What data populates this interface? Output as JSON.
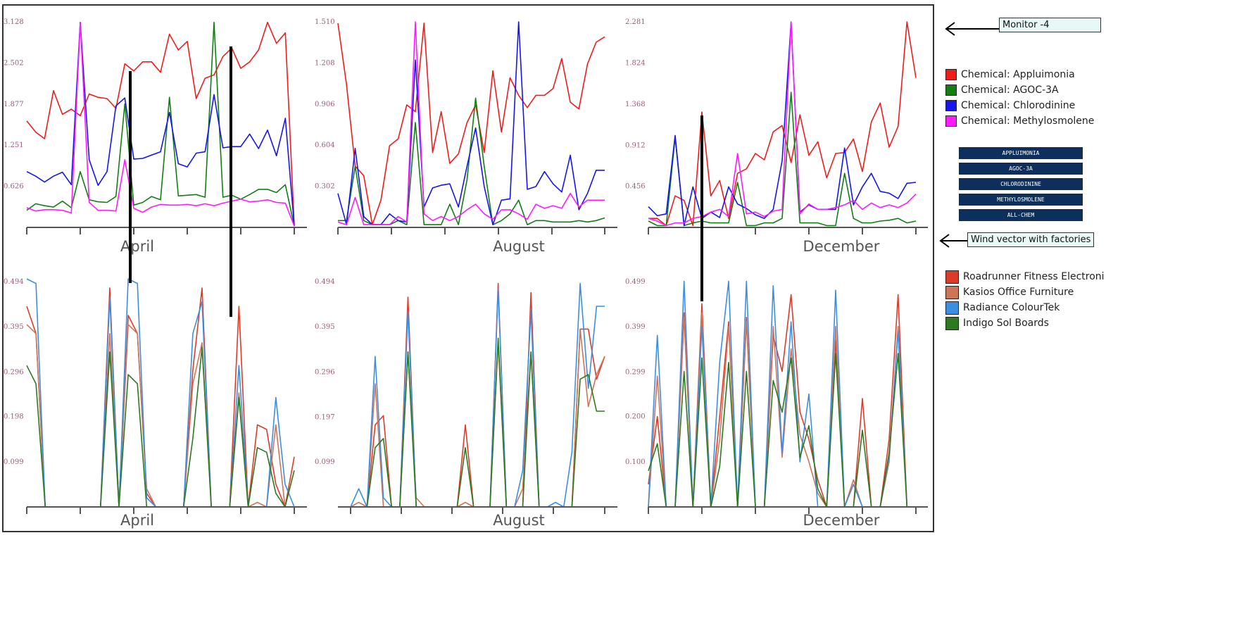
{
  "annotations": {
    "monitor_label": "Monitor -4",
    "wind_label": "Wind vector with factories"
  },
  "chemical_legend": [
    {
      "label": "Chemical: Appluimonia",
      "color": "#f01c1c"
    },
    {
      "label": "Chemical: AGOC-3A",
      "color": "#137e13"
    },
    {
      "label": "Chemical: Chlorodinine",
      "color": "#1515ee"
    },
    {
      "label": "Chemical: Methylosmolene",
      "color": "#ff1aff"
    }
  ],
  "factory_legend": [
    {
      "label": "Roadrunner Fitness Electroni",
      "color": "#dd3b2a"
    },
    {
      "label": "Kasios Office Furniture",
      "color": "#cf7557"
    },
    {
      "label": "Radiance ColourTek",
      "color": "#3c8fe0"
    },
    {
      "label": "Indigo Sol Boards",
      "color": "#2c7a1f"
    }
  ],
  "buttons": {
    "appluimonia": "APPLUIMONIA",
    "agoc": "AGOC-3A",
    "chlorodinine": "CHLORODININE",
    "methylosmolene": "METHYLOSMOLENE",
    "all": "ALL-CHEM"
  },
  "chart_data": [
    {
      "type": "line",
      "title": "",
      "xlabel": "April",
      "ylabel": "",
      "yticks": [
        "0.626",
        "1.251",
        "1.877",
        "2.502",
        "3.128"
      ],
      "ylim": [
        0,
        3.128
      ],
      "series": [
        {
          "color": "#f01c1c",
          "values": [
            1.62,
            1.45,
            1.35,
            2.08,
            1.72,
            1.8,
            1.7,
            2.03,
            1.98,
            1.96,
            1.81,
            2.49,
            2.38,
            2.52,
            2.52,
            2.36,
            2.94,
            2.7,
            2.83,
            1.96,
            2.27,
            2.32,
            2.6,
            2.73,
            2.42,
            2.52,
            2.7,
            3.12,
            2.8,
            2.96,
            0.02
          ]
        },
        {
          "color": "#137e13",
          "values": [
            0.26,
            0.36,
            0.33,
            0.31,
            0.4,
            0.3,
            0.85,
            0.42,
            0.39,
            0.38,
            0.47,
            1.88,
            0.34,
            0.38,
            0.47,
            0.42,
            1.98,
            0.48,
            0.49,
            0.5,
            0.46,
            3.12,
            0.46,
            0.49,
            0.43,
            0.5,
            0.58,
            0.58,
            0.53,
            0.65,
            0.02
          ]
        },
        {
          "color": "#1515ee",
          "values": [
            0.85,
            0.78,
            0.69,
            0.78,
            0.84,
            0.65,
            3.12,
            1.03,
            0.64,
            0.85,
            1.85,
            1.97,
            1.04,
            1.05,
            1.1,
            1.15,
            1.75,
            0.97,
            0.92,
            1.13,
            1.15,
            2.02,
            1.21,
            1.23,
            1.23,
            1.42,
            1.2,
            1.48,
            1.09,
            1.66,
            0.02
          ]
        },
        {
          "color": "#ff1aff",
          "values": [
            0.3,
            0.25,
            0.27,
            0.27,
            0.26,
            0.22,
            3.12,
            0.38,
            0.26,
            0.26,
            0.25,
            1.03,
            0.29,
            0.23,
            0.31,
            0.35,
            0.34,
            0.34,
            0.35,
            0.33,
            0.36,
            0.33,
            0.37,
            0.4,
            0.43,
            0.39,
            0.4,
            0.42,
            0.38,
            0.37,
            0.02
          ]
        }
      ]
    },
    {
      "type": "line",
      "title": "",
      "xlabel": "August",
      "ylabel": "",
      "yticks": [
        "0.302",
        "0.604",
        "0.906",
        "1.208",
        "1.510"
      ],
      "ylim": [
        0,
        1.51
      ],
      "series": [
        {
          "color": "#f01c1c",
          "values": [
            1.5,
            1.05,
            0.45,
            0.38,
            0.02,
            0.2,
            0.6,
            0.65,
            0.9,
            0.85,
            1.5,
            0.55,
            0.85,
            0.47,
            0.54,
            0.77,
            0.9,
            0.55,
            1.15,
            0.7,
            1.1,
            0.97,
            0.88,
            0.97,
            0.97,
            1.02,
            1.24,
            0.92,
            0.87,
            1.2,
            1.36,
            1.4
          ]
        },
        {
          "color": "#137e13",
          "values": [
            0.05,
            0.05,
            0.45,
            0.05,
            0.02,
            0.02,
            0.02,
            0.05,
            0.02,
            0.77,
            0.02,
            0.02,
            0.02,
            0.17,
            0.02,
            0.35,
            0.95,
            0.45,
            0.02,
            0.05,
            0.1,
            0.2,
            0.02,
            0.05,
            0.05,
            0.04,
            0.04,
            0.04,
            0.05,
            0.04,
            0.05,
            0.07
          ]
        },
        {
          "color": "#1515ee",
          "values": [
            0.25,
            0.02,
            0.58,
            0.08,
            0.02,
            0.02,
            0.1,
            0.05,
            0.04,
            1.23,
            0.15,
            0.29,
            0.31,
            0.32,
            0.15,
            0.45,
            0.73,
            0.3,
            0.02,
            0.2,
            0.21,
            1.51,
            0.28,
            0.3,
            0.41,
            0.32,
            0.26,
            0.53,
            0.13,
            0.25,
            0.42,
            0.42
          ]
        },
        {
          "color": "#ff1aff",
          "values": [
            0.04,
            0.02,
            0.22,
            0.02,
            0.02,
            0.02,
            0.02,
            0.08,
            0.04,
            1.51,
            0.1,
            0.05,
            0.08,
            0.05,
            0.08,
            0.13,
            0.17,
            0.1,
            0.06,
            0.13,
            0.13,
            0.1,
            0.06,
            0.17,
            0.14,
            0.16,
            0.14,
            0.25,
            0.15,
            0.2,
            0.2,
            0.2
          ]
        }
      ]
    },
    {
      "type": "line",
      "title": "",
      "xlabel": "December",
      "ylabel": "",
      "yticks": [
        "0.456",
        "0.912",
        "1.368",
        "1.824",
        "2.281"
      ],
      "ylim": [
        0,
        2.281
      ],
      "series": [
        {
          "color": "#f01c1c",
          "values": [
            0.1,
            0.1,
            0.02,
            0.35,
            0.3,
            0.02,
            1.28,
            0.35,
            0.52,
            0.1,
            0.6,
            0.65,
            0.82,
            0.75,
            1.06,
            1.13,
            0.72,
            1.25,
            0.8,
            0.95,
            0.55,
            0.82,
            0.83,
            0.98,
            0.62,
            1.17,
            1.38,
            0.89,
            1.12,
            2.28,
            1.66
          ]
        },
        {
          "color": "#137e13",
          "values": [
            0.07,
            0.02,
            0.02,
            1.0,
            0.02,
            0.05,
            0.07,
            0.05,
            0.05,
            0.05,
            0.5,
            0.02,
            0.02,
            0.05,
            0.05,
            0.1,
            1.5,
            0.05,
            0.05,
            0.05,
            0.02,
            0.02,
            0.6,
            0.1,
            0.05,
            0.05,
            0.07,
            0.08,
            0.1,
            0.05,
            0.07
          ]
        },
        {
          "color": "#1515ee",
          "values": [
            0.23,
            0.13,
            0.15,
            1.02,
            0.02,
            0.45,
            0.1,
            0.17,
            0.11,
            0.45,
            0.26,
            0.21,
            0.14,
            0.1,
            0.2,
            0.74,
            2.28,
            0.17,
            0.25,
            0.2,
            0.2,
            0.2,
            0.88,
            0.25,
            0.45,
            0.6,
            0.4,
            0.38,
            0.32,
            0.49,
            0.5
          ]
        },
        {
          "color": "#ff1aff",
          "values": [
            0.1,
            0.07,
            0.02,
            0.05,
            0.05,
            0.1,
            0.12,
            0.17,
            0.2,
            0.12,
            0.82,
            0.15,
            0.17,
            0.12,
            0.18,
            0.2,
            2.28,
            0.15,
            0.26,
            0.2,
            0.2,
            0.22,
            0.25,
            0.3,
            0.2,
            0.27,
            0.22,
            0.25,
            0.22,
            0.27,
            0.37
          ]
        }
      ]
    },
    {
      "type": "line",
      "title": "",
      "xlabel": "April",
      "ylabel": "",
      "yticks": [
        "0.099",
        "0.198",
        "0.296",
        "0.395",
        "0.494"
      ],
      "ylim": [
        0,
        0.494
      ],
      "series": [
        {
          "color": "#dd3b2a",
          "values": [
            0.44,
            0.38,
            0.0,
            0.0,
            0.0,
            0.0,
            0.0,
            0.0,
            0.0,
            0.48,
            0.0,
            0.42,
            0.38,
            0.03,
            0.0,
            0.0,
            0.0,
            0.0,
            0.3,
            0.48,
            0.0,
            0.0,
            0.0,
            0.44,
            0.0,
            0.18,
            0.17,
            0.05,
            0.0,
            0.11
          ]
        },
        {
          "color": "#cf7557",
          "values": [
            0.4,
            0.38,
            0.0,
            0.0,
            0.0,
            0.0,
            0.0,
            0.0,
            0.0,
            0.38,
            0.0,
            0.4,
            0.38,
            0.04,
            0.0,
            0.0,
            0.0,
            0.0,
            0.27,
            0.36,
            0.0,
            0.0,
            0.0,
            0.25,
            0.0,
            0.01,
            0.0,
            0.18,
            0.0,
            0.0
          ]
        },
        {
          "color": "#3c8fe0",
          "values": [
            0.5,
            0.49,
            0.0,
            0.0,
            0.0,
            0.0,
            0.0,
            0.0,
            0.0,
            0.46,
            0.0,
            0.5,
            0.49,
            0.02,
            0.0,
            0.0,
            0.0,
            0.0,
            0.38,
            0.45,
            0.0,
            0.0,
            0.0,
            0.31,
            0.0,
            0.0,
            0.0,
            0.24,
            0.05,
            0.0
          ]
        },
        {
          "color": "#2c7a1f",
          "values": [
            0.31,
            0.27,
            0.0,
            0.0,
            0.0,
            0.0,
            0.0,
            0.0,
            0.0,
            0.34,
            0.0,
            0.29,
            0.27,
            0.0,
            0.0,
            0.0,
            0.0,
            0.0,
            0.15,
            0.35,
            0.0,
            0.0,
            0.0,
            0.24,
            0.0,
            0.13,
            0.12,
            0.03,
            0.0,
            0.08
          ]
        }
      ]
    },
    {
      "type": "line",
      "title": "",
      "xlabel": "August",
      "ylabel": "",
      "yticks": [
        "0.099",
        "0.197",
        "0.296",
        "0.395",
        "0.494"
      ],
      "ylim": [
        0,
        0.494
      ],
      "series": [
        {
          "color": "#dd3b2a",
          "values": [
            0.0,
            0.0,
            0.0,
            0.18,
            0.2,
            0.0,
            0.0,
            0.46,
            0.0,
            0.0,
            0.0,
            0.0,
            0.0,
            0.0,
            0.18,
            0.0,
            0.0,
            0.0,
            0.49,
            0.0,
            0.0,
            0.0,
            0.47,
            0.0,
            0.0,
            0.0,
            0.0,
            0.0,
            0.39,
            0.39,
            0.28,
            0.33
          ]
        },
        {
          "color": "#cf7557",
          "values": [
            0.0,
            0.01,
            0.0,
            0.27,
            0.0,
            0.0,
            0.0,
            0.34,
            0.02,
            0.0,
            0.0,
            0.0,
            0.0,
            0.0,
            0.01,
            0.0,
            0.0,
            0.0,
            0.36,
            0.0,
            0.0,
            0.04,
            0.34,
            0.0,
            0.0,
            0.0,
            0.0,
            0.0,
            0.39,
            0.22,
            0.29,
            0.33
          ]
        },
        {
          "color": "#3c8fe0",
          "values": [
            0.0,
            0.04,
            0.0,
            0.33,
            0.02,
            0.0,
            0.0,
            0.43,
            0.0,
            0.0,
            0.0,
            0.0,
            0.0,
            0.0,
            0.0,
            0.0,
            0.0,
            0.0,
            0.48,
            0.0,
            0.0,
            0.08,
            0.43,
            0.0,
            0.0,
            0.01,
            0.0,
            0.12,
            0.49,
            0.26,
            0.44,
            0.44
          ]
        },
        {
          "color": "#2c7a1f",
          "values": [
            0.0,
            0.0,
            0.0,
            0.13,
            0.15,
            0.0,
            0.0,
            0.34,
            0.0,
            0.0,
            0.0,
            0.0,
            0.0,
            0.0,
            0.13,
            0.0,
            0.0,
            0.0,
            0.37,
            0.0,
            0.0,
            0.0,
            0.34,
            0.0,
            0.0,
            0.0,
            0.0,
            0.0,
            0.28,
            0.29,
            0.21,
            0.21
          ]
        }
      ]
    },
    {
      "type": "line",
      "title": "",
      "xlabel": "December",
      "ylabel": "",
      "yticks": [
        "0.100",
        "0.200",
        "0.299",
        "0.399",
        "0.499"
      ],
      "ylim": [
        0,
        0.499
      ],
      "series": [
        {
          "color": "#dd3b2a",
          "values": [
            0.05,
            0.2,
            0.0,
            0.0,
            0.43,
            0.0,
            0.45,
            0.0,
            0.2,
            0.41,
            0.0,
            0.42,
            0.0,
            0.0,
            0.38,
            0.3,
            0.47,
            0.21,
            0.15,
            0.06,
            0.0,
            0.37,
            0.0,
            0.0,
            0.24,
            0.0,
            0.0,
            0.15,
            0.47,
            0.0,
            0.0
          ]
        },
        {
          "color": "#cf7557",
          "values": [
            0.0,
            0.29,
            0.0,
            0.0,
            0.42,
            0.0,
            0.43,
            0.0,
            0.15,
            0.4,
            0.0,
            0.41,
            0.0,
            0.0,
            0.4,
            0.11,
            0.35,
            0.16,
            0.1,
            0.03,
            0.0,
            0.4,
            0.0,
            0.06,
            0.0,
            0.0,
            0.0,
            0.1,
            0.4,
            0.0,
            0.0
          ]
        },
        {
          "color": "#3c8fe0",
          "values": [
            0.0,
            0.38,
            0.0,
            0.0,
            0.5,
            0.0,
            0.4,
            0.0,
            0.32,
            0.5,
            0.0,
            0.5,
            0.0,
            0.0,
            0.49,
            0.12,
            0.41,
            0.1,
            0.25,
            0.0,
            0.0,
            0.48,
            0.0,
            0.05,
            0.0,
            0.0,
            0.0,
            0.11,
            0.39,
            0.0,
            0.0
          ]
        },
        {
          "color": "#2c7a1f",
          "values": [
            0.08,
            0.14,
            0.0,
            0.0,
            0.3,
            0.0,
            0.33,
            0.0,
            0.09,
            0.32,
            0.0,
            0.3,
            0.0,
            0.0,
            0.28,
            0.21,
            0.33,
            0.11,
            0.18,
            0.04,
            0.0,
            0.34,
            0.0,
            0.0,
            0.17,
            0.0,
            0.0,
            0.12,
            0.34,
            0.0,
            0.0
          ]
        }
      ]
    }
  ]
}
